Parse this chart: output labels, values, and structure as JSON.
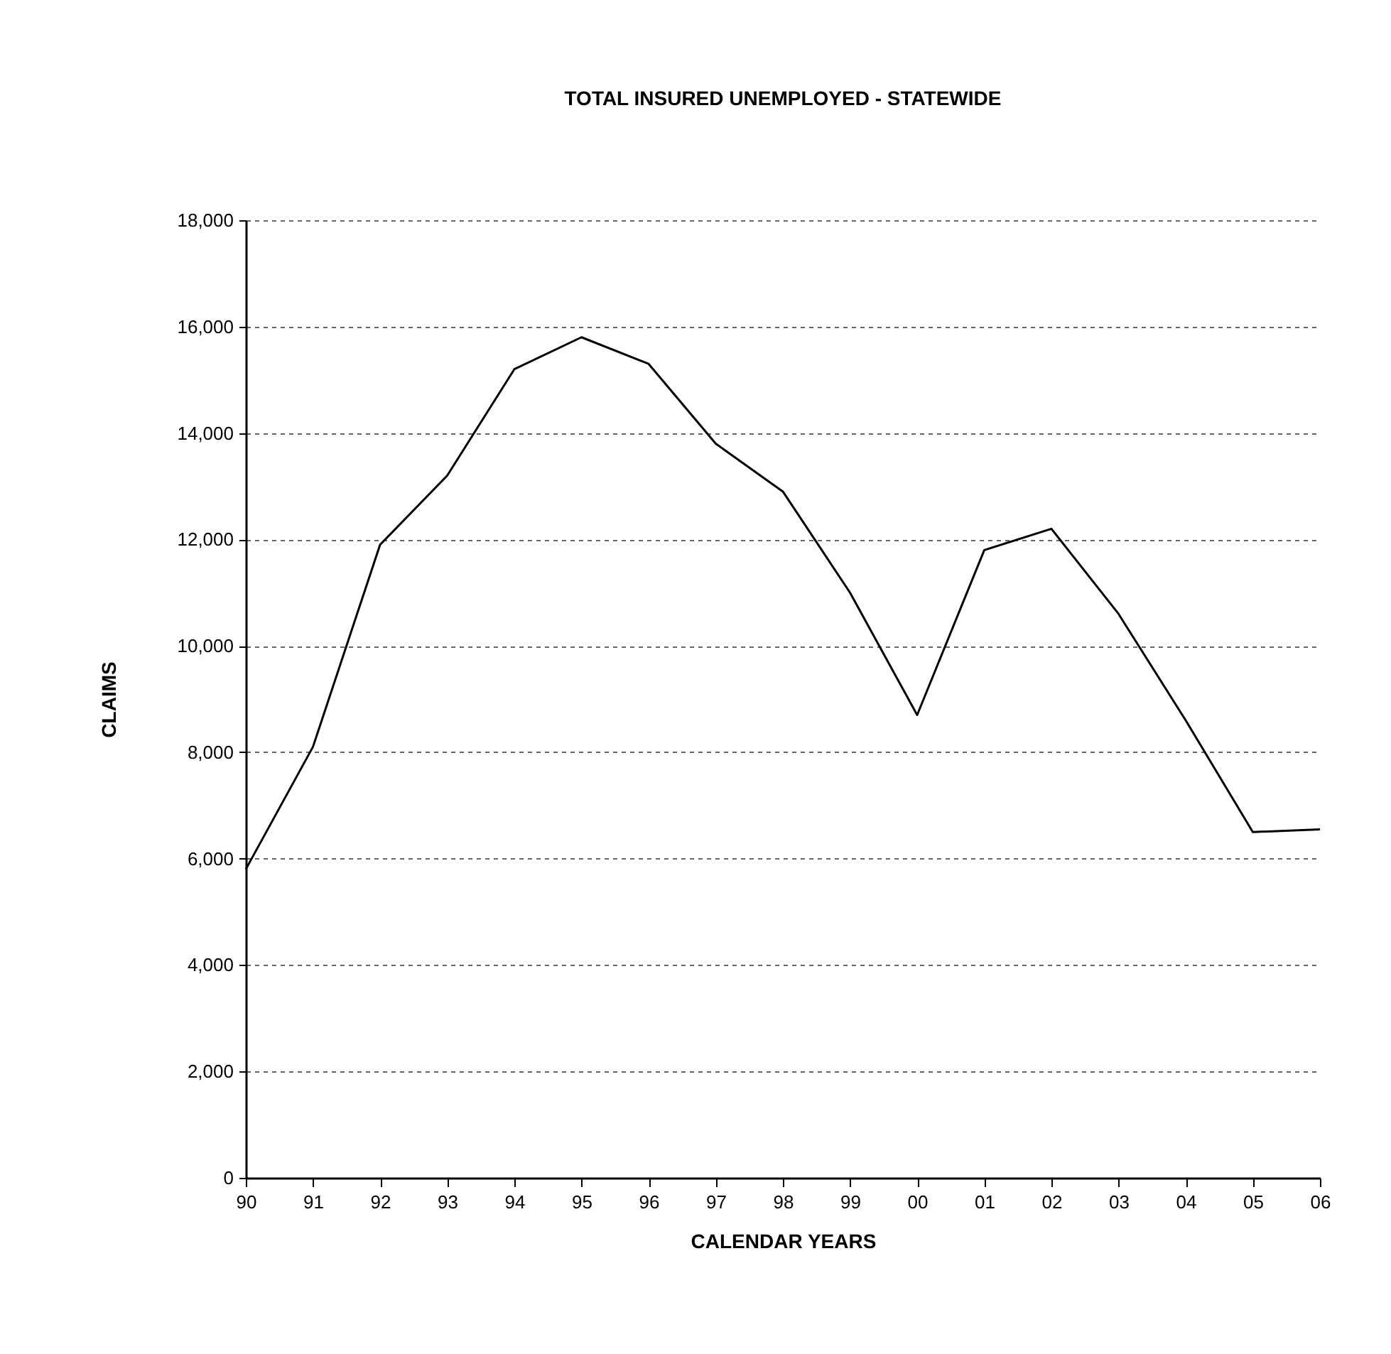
{
  "chart_data": {
    "type": "line",
    "title": "TOTAL INSURED UNEMPLOYED - STATEWIDE",
    "xlabel": "CALENDAR YEARS",
    "ylabel": "CLAIMS",
    "categories": [
      "90",
      "91",
      "92",
      "93",
      "94",
      "95",
      "96",
      "97",
      "98",
      "99",
      "00",
      "01",
      "02",
      "03",
      "04",
      "05",
      "06"
    ],
    "series": [
      {
        "color": "#000000",
        "values": [
          5800,
          8100,
          11900,
          13200,
          15200,
          15800,
          15300,
          13800,
          12900,
          11000,
          8700,
          11800,
          12200,
          10600,
          8600,
          6500,
          6550
        ]
      }
    ],
    "ylim": [
      0,
      18000
    ],
    "yticks": [
      0,
      {
        "value": 2000,
        "label": "2,000"
      },
      {
        "value": 4000,
        "label": "4,000"
      },
      {
        "value": 6000,
        "label": "6,000"
      },
      {
        "value": 8000,
        "label": "8,000"
      },
      {
        "value": 10000,
        "label": "10,000"
      },
      {
        "value": 12000,
        "label": "12,000"
      },
      {
        "value": 14000,
        "label": "14,000"
      },
      {
        "value": 16000,
        "label": "16,000"
      },
      {
        "value": 18000,
        "label": "18,000"
      }
    ],
    "grid": "y",
    "legend": false,
    "marker": "none",
    "line_style": "solid"
  }
}
